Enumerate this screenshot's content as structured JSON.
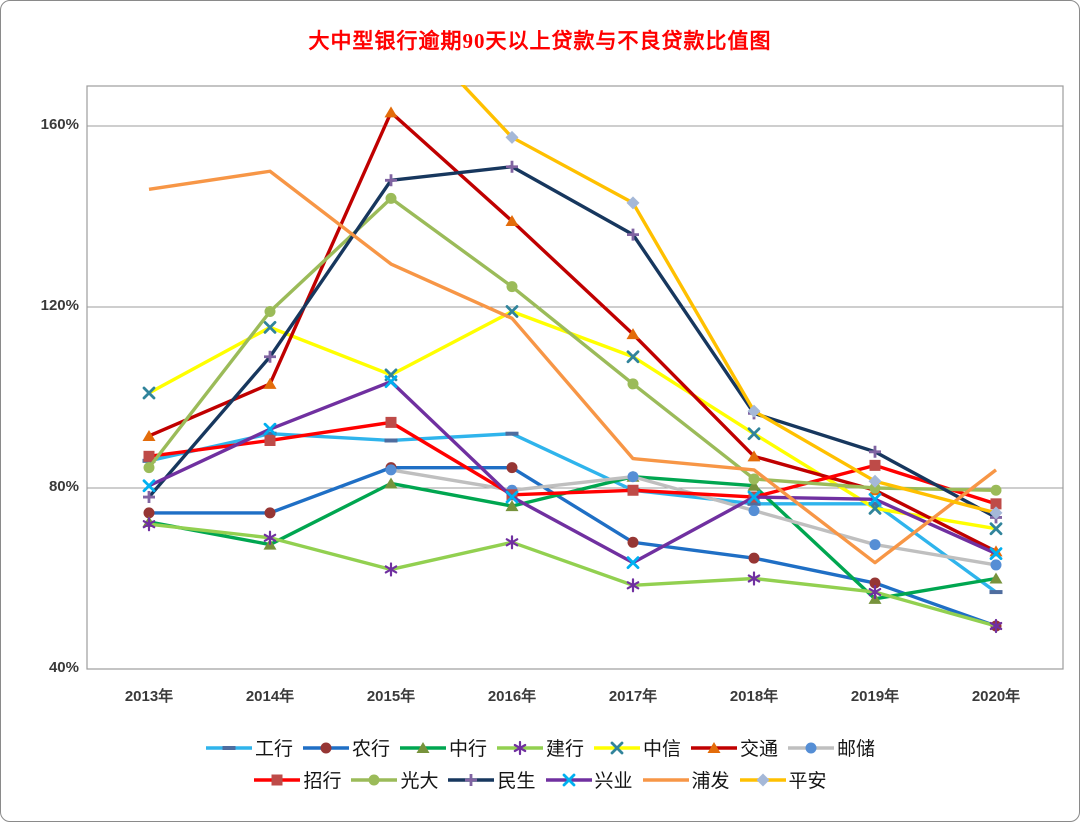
{
  "title": "大中型银行逾期90天以上贷款与不良贷款比值图",
  "title_color": "#FF0000",
  "chart_data": {
    "type": "line",
    "title": "大中型银行逾期90天以上贷款与不良贷款比值图",
    "x_categories": [
      "2013年",
      "2014年",
      "2015年",
      "2016年",
      "2017年",
      "2018年",
      "2019年",
      "2020年"
    ],
    "y_ticks": [
      "160%",
      "120%",
      "80%",
      "40%"
    ],
    "y_tick_values": [
      160,
      120,
      80,
      40
    ],
    "y_axis": {
      "min": 40,
      "max": 170,
      "unit": "%",
      "gridlines_on": true
    },
    "grid_color": "#9c9c9c",
    "legend_position": "bottom",
    "legend_rows": [
      7,
      6
    ],
    "series": [
      {
        "id": "icbc",
        "name": "工行",
        "color": "#2FB4EC",
        "marker": "dash",
        "marker_color": "#4F6D9F",
        "values": [
          86,
          92,
          90.5,
          92,
          79.5,
          76.5,
          76.5,
          57
        ]
      },
      {
        "id": "abc",
        "name": "农行",
        "color": "#1F6FC5",
        "marker": "circle",
        "marker_color": "#963634",
        "values": [
          74.5,
          74.5,
          84.5,
          84.5,
          68,
          64.5,
          59,
          49.5
        ]
      },
      {
        "id": "boc",
        "name": "中行",
        "color": "#00A650",
        "marker": "triangle",
        "marker_color": "#77933C",
        "values": [
          72.5,
          67.5,
          81,
          76,
          82.5,
          80.5,
          55.5,
          60
        ]
      },
      {
        "id": "ccb",
        "name": "建行",
        "color": "#92D050",
        "marker": "asterisk",
        "marker_color": "#7030A0",
        "values": [
          72,
          69,
          62,
          68,
          58.5,
          60,
          57,
          49.5
        ]
      },
      {
        "id": "citic",
        "name": "中信",
        "color": "#FFFF00",
        "marker": "x",
        "marker_color": "#31849B",
        "values": [
          101,
          115.5,
          105,
          119,
          109,
          92,
          75.5,
          71
        ]
      },
      {
        "id": "bocom",
        "name": "交通",
        "color": "#C00000",
        "marker": "triangle",
        "marker_color": "#E36C0A",
        "values": [
          91.5,
          103,
          163,
          139,
          114,
          87,
          79.5,
          66
        ]
      },
      {
        "id": "psbc",
        "name": "邮储",
        "color": "#BFBFBF",
        "marker": "circle",
        "marker_color": "#558ED5",
        "values": [
          null,
          null,
          84,
          79.5,
          82.5,
          75,
          67.5,
          63
        ]
      },
      {
        "id": "cmb",
        "name": "招行",
        "color": "#FF0000",
        "marker": "square",
        "marker_color": "#BE4B48",
        "values": [
          87,
          90.5,
          94.5,
          78.5,
          79.5,
          78,
          85,
          76.5
        ]
      },
      {
        "id": "ceb",
        "name": "光大",
        "color": "#9BBB59",
        "marker": "circle",
        "marker_color": "#9BBB59",
        "values": [
          84.5,
          119,
          144,
          124.5,
          103,
          82,
          80,
          79.5
        ]
      },
      {
        "id": "cmbc",
        "name": "民生",
        "color": "#17375E",
        "marker": "plus",
        "marker_color": "#8064A2",
        "values": [
          78,
          109,
          148,
          151,
          136,
          96.5,
          88,
          73.5
        ]
      },
      {
        "id": "cib",
        "name": "兴业",
        "color": "#7030A0",
        "marker": "x",
        "marker_color": "#00B0F0",
        "values": [
          80.5,
          93,
          103.5,
          78,
          63.5,
          78,
          77.5,
          65.5
        ]
      },
      {
        "id": "spdb",
        "name": "浦发",
        "color": "#F79646",
        "marker": "none",
        "marker_color": "#F79646",
        "values": [
          146,
          150,
          129.5,
          117.5,
          86.5,
          84,
          63.5,
          84
        ]
      },
      {
        "id": "pingan",
        "name": "平安",
        "color": "#FFC000",
        "marker": "diamond",
        "marker_color": "#A5B8D8",
        "values": [
          null,
          null,
          186,
          157.5,
          143,
          97,
          81.5,
          74.5
        ]
      }
    ]
  }
}
